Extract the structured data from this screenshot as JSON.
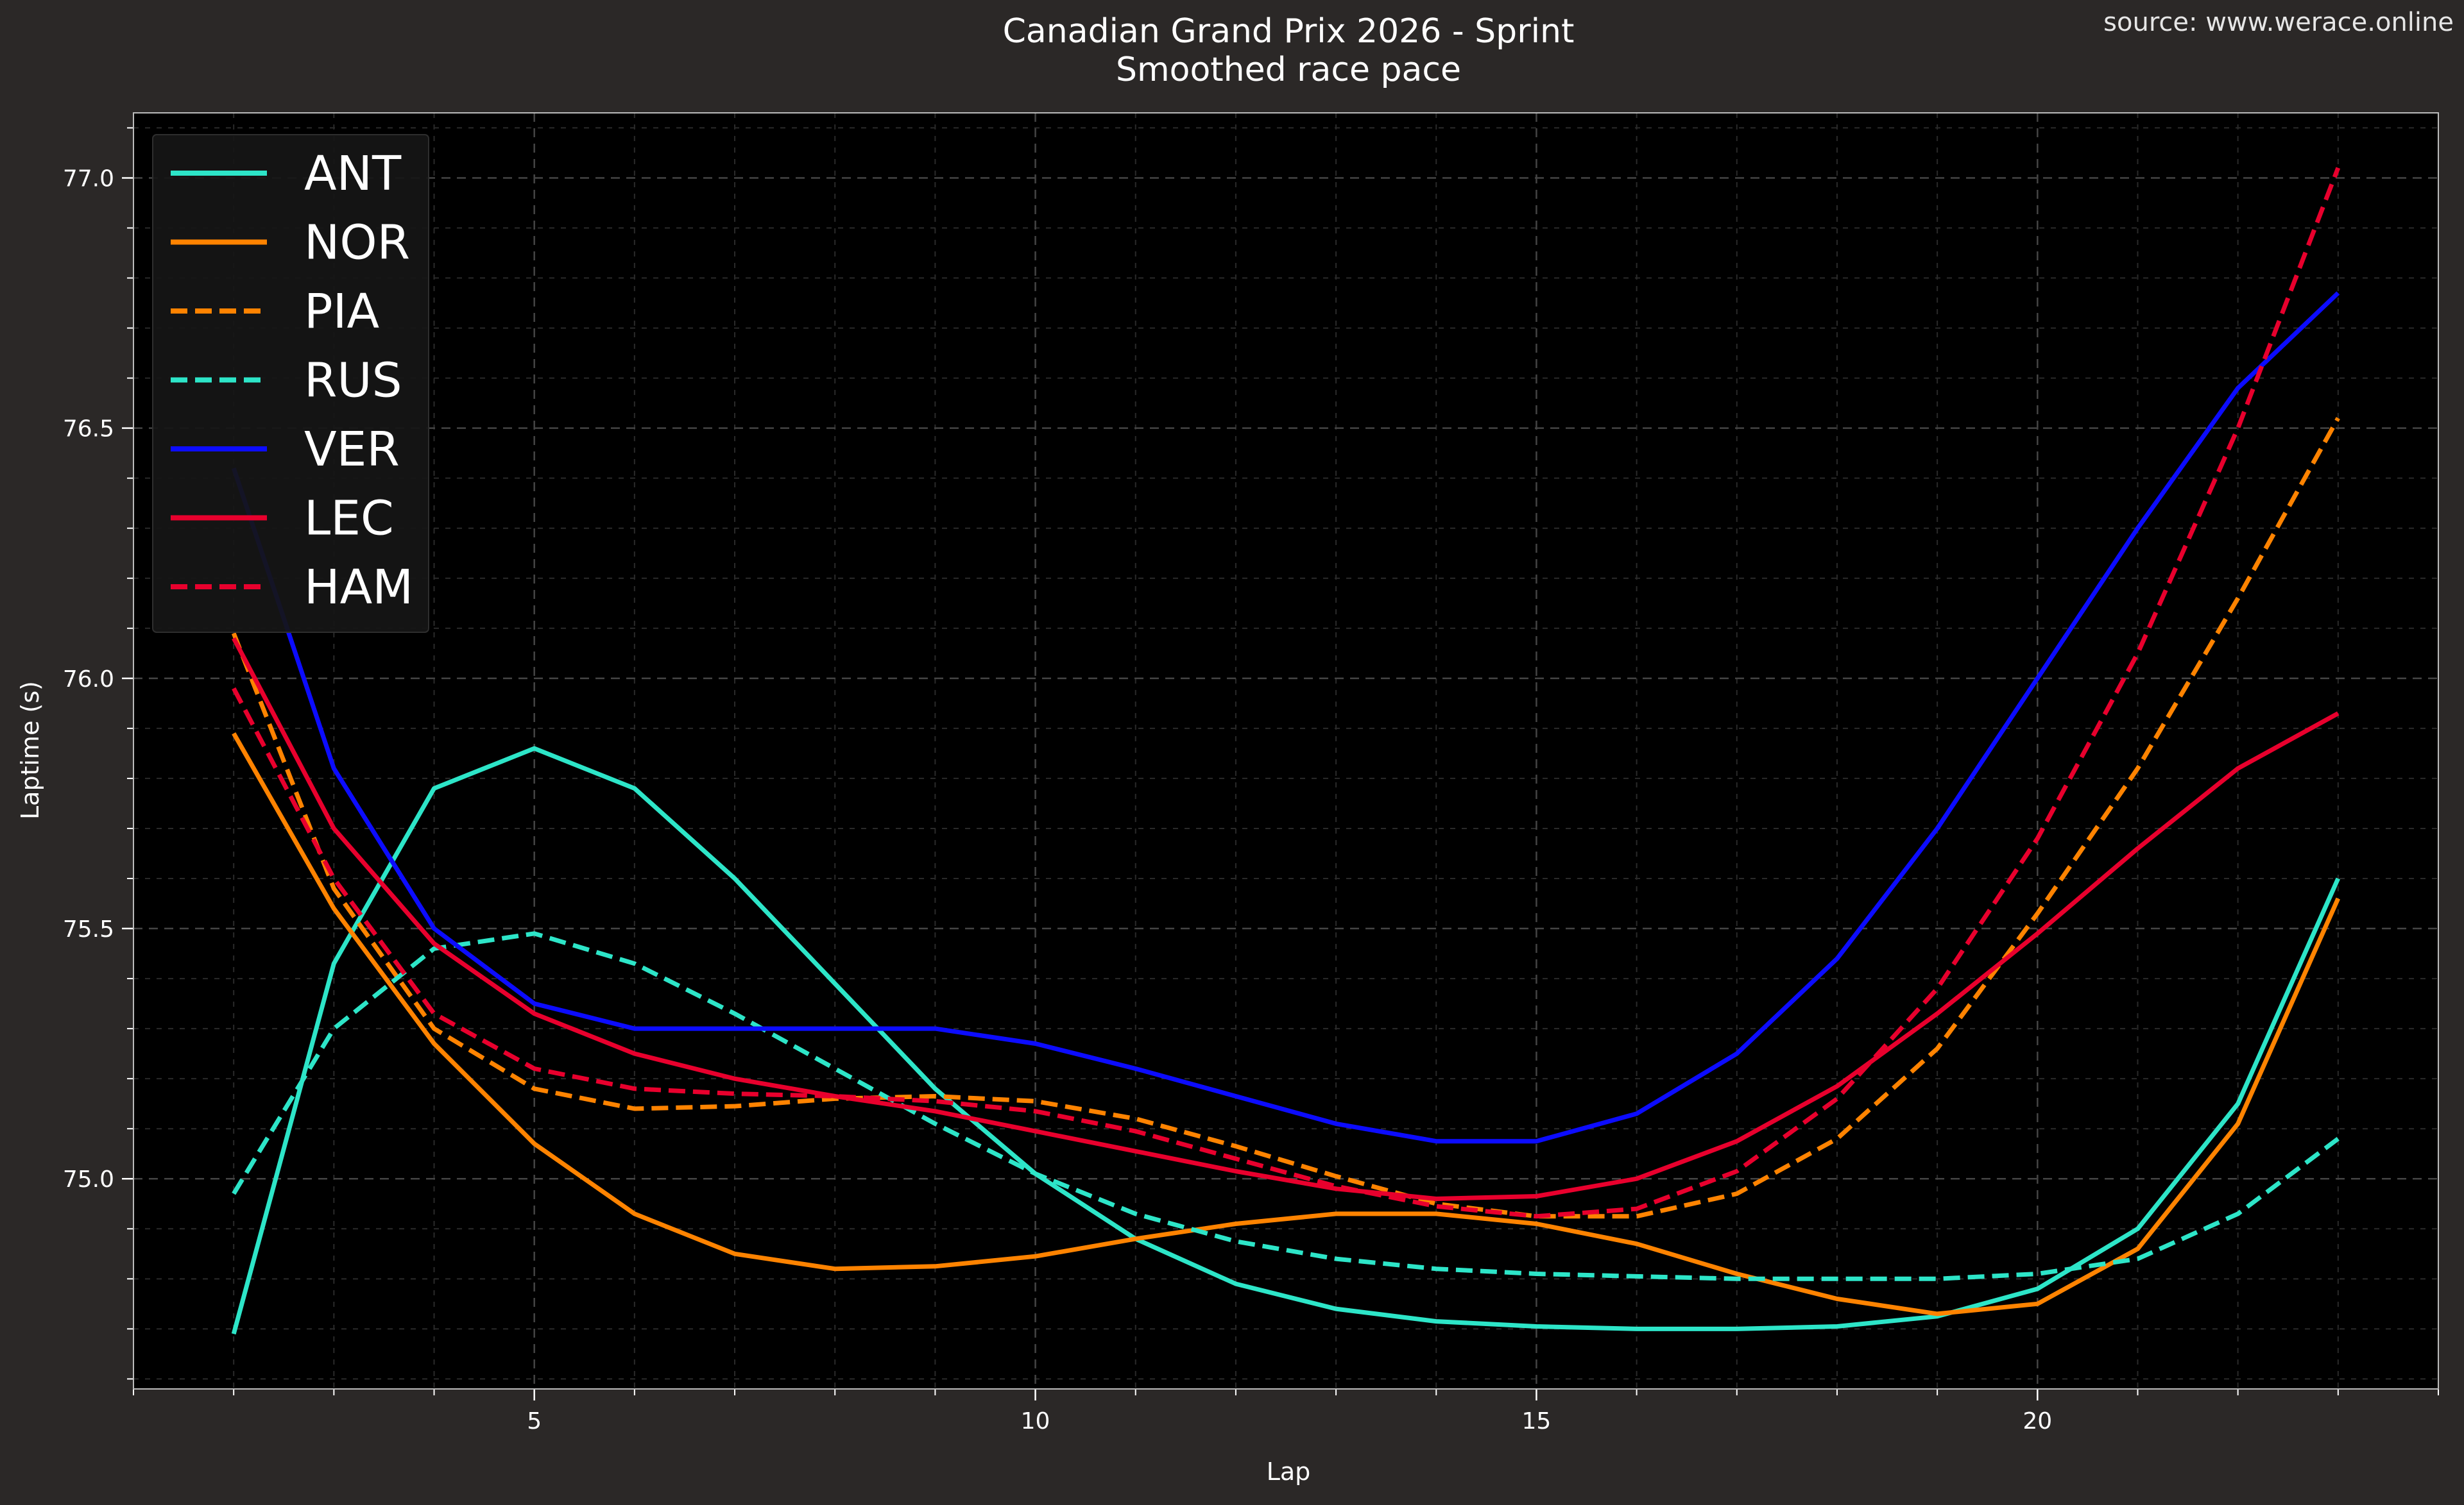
{
  "header": {
    "title": "Canadian Grand Prix 2026 - Sprint",
    "subtitle": "Smoothed race pace",
    "source": "source: www.werace.online"
  },
  "colors": {
    "page_background": "#2b2827",
    "plot_background": "#000000",
    "legend_background": "#161616",
    "grid": "#3a3a3a",
    "text": "#ffffff"
  },
  "chart_data": {
    "type": "line",
    "xlabel": "Lap",
    "ylabel": "Laptime (s)",
    "xlim": [
      1,
      24
    ],
    "ylim": [
      74.58,
      77.13
    ],
    "x_major_ticks": [
      5,
      10,
      15,
      20
    ],
    "y_major_ticks": [
      75.0,
      75.5,
      76.0,
      76.5,
      77.0
    ],
    "y_tick_labels": [
      "75.0",
      "75.5",
      "76.0",
      "76.5",
      "77.0"
    ],
    "x_tick_labels": [
      "5",
      "10",
      "15",
      "20"
    ],
    "grid": true,
    "legend": "top-left",
    "x": [
      2,
      3,
      4,
      5,
      6,
      7,
      8,
      9,
      10,
      11,
      12,
      13,
      14,
      15,
      16,
      17,
      18,
      19,
      20,
      21,
      22,
      23
    ],
    "series": [
      {
        "name": "ANT",
        "color": "#2de5c8",
        "dash": "solid",
        "values": [
          74.69,
          75.43,
          75.78,
          75.86,
          75.78,
          75.6,
          75.39,
          75.18,
          75.01,
          74.88,
          74.79,
          74.74,
          74.715,
          74.705,
          74.7,
          74.7,
          74.705,
          74.725,
          74.78,
          74.9,
          75.15,
          75.6
        ]
      },
      {
        "name": "NOR",
        "color": "#ff8300",
        "dash": "solid",
        "values": [
          75.89,
          75.54,
          75.27,
          75.07,
          74.93,
          74.85,
          74.82,
          74.825,
          74.845,
          74.88,
          74.91,
          74.93,
          74.93,
          74.91,
          74.87,
          74.81,
          74.76,
          74.73,
          74.75,
          74.86,
          75.11,
          75.56
        ]
      },
      {
        "name": "PIA",
        "color": "#ff8300",
        "dash": "dashed",
        "values": [
          76.09,
          75.58,
          75.3,
          75.18,
          75.14,
          75.145,
          75.16,
          75.165,
          75.155,
          75.12,
          75.065,
          75.005,
          74.95,
          74.925,
          74.925,
          74.97,
          75.08,
          75.26,
          75.53,
          75.82,
          76.16,
          76.52
        ]
      },
      {
        "name": "RUS",
        "color": "#2de5c8",
        "dash": "dashed",
        "values": [
          74.97,
          75.3,
          75.46,
          75.49,
          75.43,
          75.33,
          75.22,
          75.11,
          75.01,
          74.93,
          74.875,
          74.84,
          74.82,
          74.81,
          74.805,
          74.8,
          74.8,
          74.8,
          74.81,
          74.84,
          74.93,
          75.08
        ]
      },
      {
        "name": "VER",
        "color": "#0c0cff",
        "dash": "solid",
        "values": [
          76.42,
          75.82,
          75.5,
          75.35,
          75.3,
          75.3,
          75.3,
          75.3,
          75.27,
          75.22,
          75.165,
          75.11,
          75.075,
          75.075,
          75.13,
          75.25,
          75.44,
          75.7,
          76.0,
          76.3,
          76.58,
          76.77
        ]
      },
      {
        "name": "LEC",
        "color": "#e8002d",
        "dash": "solid",
        "values": [
          76.08,
          75.7,
          75.47,
          75.33,
          75.25,
          75.2,
          75.165,
          75.135,
          75.095,
          75.055,
          75.015,
          74.98,
          74.96,
          74.965,
          75.0,
          75.075,
          75.185,
          75.33,
          75.49,
          75.66,
          75.82,
          75.93
        ]
      },
      {
        "name": "HAM",
        "color": "#e8002d",
        "dash": "dashed",
        "values": [
          75.98,
          75.6,
          75.33,
          75.22,
          75.18,
          75.17,
          75.165,
          75.155,
          75.135,
          75.095,
          75.04,
          74.985,
          74.945,
          74.925,
          74.94,
          75.015,
          75.16,
          75.38,
          75.68,
          76.05,
          76.5,
          77.02
        ]
      }
    ]
  }
}
